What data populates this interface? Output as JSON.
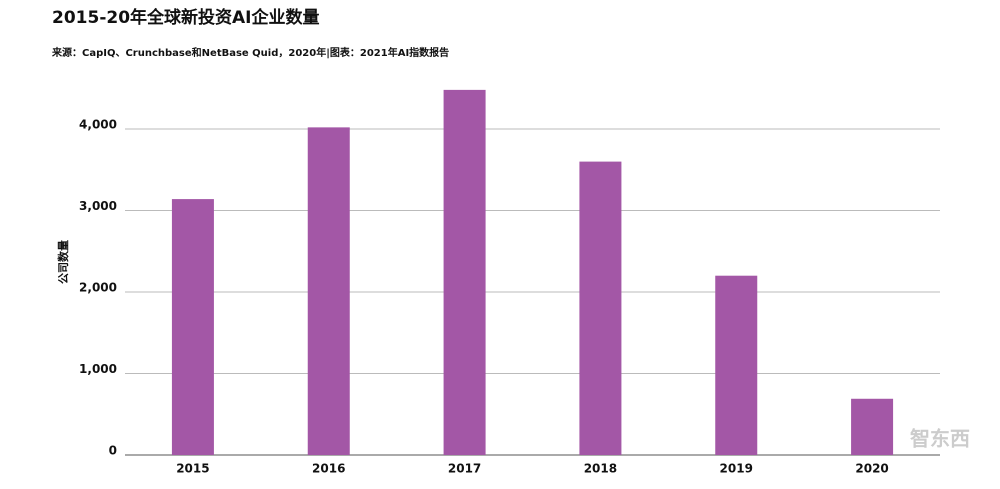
{
  "chart_data": {
    "type": "bar",
    "title": "2015-20年全球新投资AI企业数量",
    "subtitle": "来源：CapIQ、Crunchbase和NetBase Quid，2020年|图表：2021年AI指数报告",
    "y_label": "公司数量",
    "watermark": "智东西",
    "categories": [
      "2015",
      "2016",
      "2017",
      "2018",
      "2019",
      "2020"
    ],
    "values": [
      3140,
      4020,
      4480,
      3600,
      2200,
      690
    ],
    "color": "#a357a6",
    "ylim": [
      0,
      4500
    ],
    "yticks": [
      0,
      {
        "value": 1000,
        "label": "1,000"
      },
      {
        "value": 2000,
        "label": "2,000"
      },
      {
        "value": 3000,
        "label": "3,000"
      },
      {
        "value": 4000,
        "label": "4,000"
      }
    ],
    "grid": true
  }
}
